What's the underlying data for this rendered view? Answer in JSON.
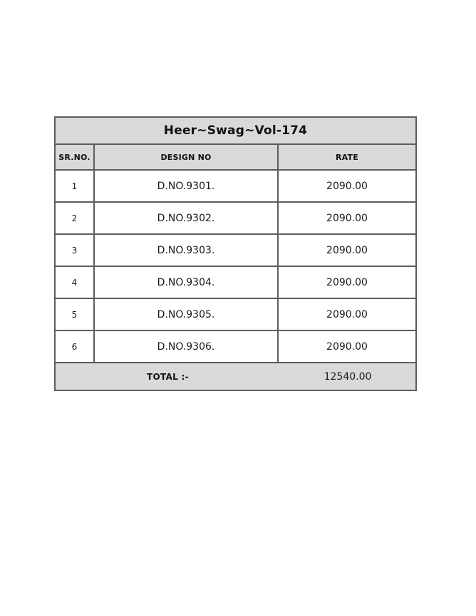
{
  "table": {
    "title": "Heer~Swag~Vol-174",
    "columns": {
      "sr": "SR.NO.",
      "design": "DESIGN NO",
      "rate": "RATE"
    },
    "rows": [
      {
        "sr": "1",
        "design": "D.NO.9301.",
        "rate": "2090.00"
      },
      {
        "sr": "2",
        "design": "D.NO.9302.",
        "rate": "2090.00"
      },
      {
        "sr": "3",
        "design": "D.NO.9303.",
        "rate": "2090.00"
      },
      {
        "sr": "4",
        "design": "D.NO.9304.",
        "rate": "2090.00"
      },
      {
        "sr": "5",
        "design": "D.NO.9305.",
        "rate": "2090.00"
      },
      {
        "sr": "6",
        "design": "D.NO.9306.",
        "rate": "2090.00"
      }
    ],
    "total_label": "TOTAL :-",
    "total_value": "12540.00",
    "colors": {
      "band_bg": "#d9d9d9",
      "border": "#5c5c5c",
      "page_bg": "#ffffff",
      "text": "#1a1a1a"
    }
  }
}
